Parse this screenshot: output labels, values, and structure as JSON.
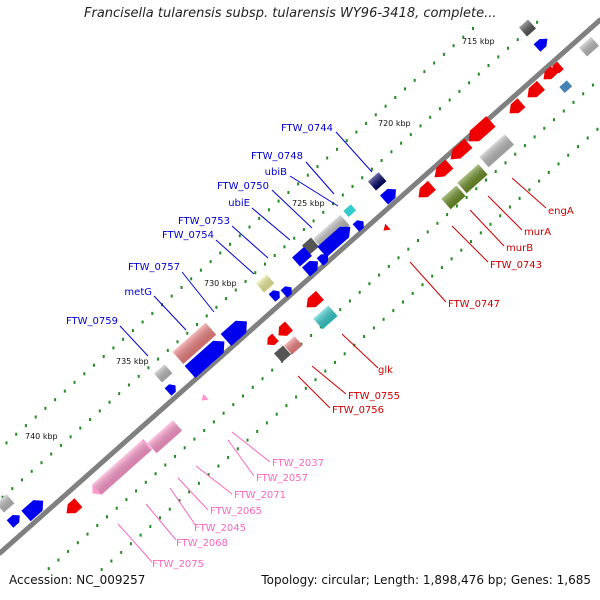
{
  "title": "Francisella tularensis subsp. tularensis WY96-3418, complete...",
  "footer": {
    "accession": "Accession: NC_009257",
    "summary": "Topology: circular; Length: 1,898,476 bp; Genes: 1,685"
  },
  "scale_labels": [
    "715 kbp",
    "720 kbp",
    "725 kbp",
    "730 kbp",
    "735 kbp",
    "740 kbp"
  ],
  "gene_labels": {
    "forward_strand": [
      "FTW_0744",
      "FTW_0748",
      "ubiB",
      "FTW_0750",
      "ubiE",
      "FTW_0753",
      "FTW_0754",
      "FTW_0757",
      "metG",
      "FTW_0759"
    ],
    "reverse_strand": [
      "engA",
      "murA",
      "murB",
      "FTW_0743",
      "FTW_0747",
      "glk",
      "FTW_0755",
      "FTW_0756"
    ],
    "pink_cluster": [
      "FTW_2037",
      "FTW_2057",
      "FTW_2071",
      "FTW_2065",
      "FTW_2045",
      "FTW_2068",
      "FTW_2075"
    ]
  },
  "colors": {
    "backbone": "#808080",
    "forward_gene": "#0000ee",
    "reverse_gene": "#ee0000",
    "pink_gene": "#ff99cc",
    "cyan_gene": "#33cccc",
    "olive_gene": "#6b8e23",
    "yellow_gene": "#eeee99",
    "salmon_gene": "#f08080",
    "grey_gene": "#bbbbbb",
    "dark_grey_gene": "#555555",
    "navy_gene": "#000066",
    "steel_gene": "#4682b4",
    "label_blue": "#0000cc",
    "label_red": "#cc0000",
    "label_pink": "#ff66bb"
  }
}
